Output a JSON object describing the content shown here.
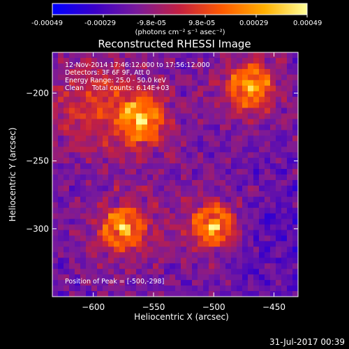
{
  "colors": {
    "background": "#000000",
    "text": "#ffffff",
    "colorbar_stops": [
      "#0000ff",
      "#3a00c8",
      "#7a1a9a",
      "#c42040",
      "#ff5a00",
      "#ffb000",
      "#ffff9a"
    ]
  },
  "colorbar": {
    "ticks": [
      "-0.00049",
      "-0.00029",
      "-9.8e-05",
      "9.8e-05",
      "0.00029",
      "0.00049"
    ],
    "range": [
      -0.00049,
      0.00049
    ],
    "unit_label": "(photons cm⁻² s⁻¹ asec⁻²)"
  },
  "chart_data": {
    "type": "heatmap",
    "title": "Reconstructed RHESSI Image",
    "xlabel": "Heliocentric X (arcsec)",
    "ylabel": "Heliocentric Y (arcsec)",
    "xlim": [
      -634,
      -430
    ],
    "ylim": [
      -350,
      -170
    ],
    "x_ticks": [
      -600,
      -550,
      -500,
      -450
    ],
    "y_ticks": [
      -200,
      -250,
      -300
    ],
    "x_tick_labels": [
      "−600",
      "−550",
      "−500",
      "−450"
    ],
    "y_tick_labels": [
      "−200",
      "−250",
      "−300"
    ],
    "grid": false,
    "annotations": [
      "12-Nov-2014 17:46:12.000 to 17:56:12.000",
      "Detectors: 3F 6F 9F, Att 0",
      "Energy Range: 25.0 - 50.0 keV",
      "Clean    Total counts: 6.14E+03"
    ],
    "peak_label": "Position of Peak = [-500,-298]",
    "peak": {
      "x": -500,
      "y": -298
    },
    "sources": [
      {
        "x": -560,
        "y": -220
      },
      {
        "x": -575,
        "y": -300
      },
      {
        "x": -500,
        "y": -298
      },
      {
        "x": -470,
        "y": -195
      }
    ]
  },
  "footer": {
    "date": "31-Jul-2017 00:39"
  }
}
